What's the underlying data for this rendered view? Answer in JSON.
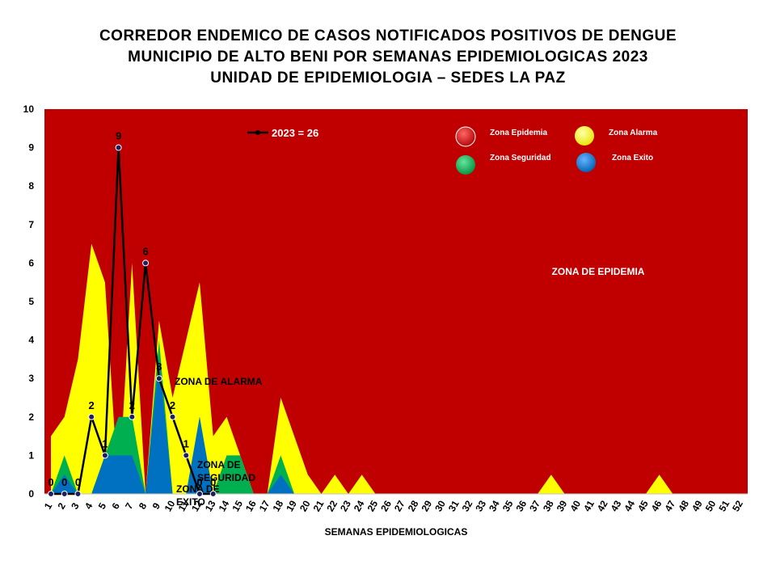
{
  "title": {
    "line1": "CORREDOR ENDEMICO DE CASOS NOTIFICADOS POSITIVOS DE DENGUE",
    "line2": "MUNICIPIO DE ALTO BENI  POR SEMANAS EPIDEMIOLOGICAS 2023",
    "line3": "UNIDAD DE EPIDEMIOLOGIA – SEDES LA PAZ"
  },
  "chart_data": {
    "type": "area",
    "xlabel": "SEMANAS EPIDEMIOLOGICAS",
    "ylabel": "",
    "ylim": [
      0,
      10
    ],
    "yticks": [
      0,
      1,
      2,
      3,
      4,
      5,
      6,
      7,
      8,
      9,
      10
    ],
    "x": [
      1,
      2,
      3,
      4,
      5,
      6,
      7,
      8,
      9,
      10,
      11,
      12,
      13,
      14,
      15,
      16,
      17,
      18,
      19,
      20,
      21,
      22,
      23,
      24,
      25,
      26,
      27,
      28,
      29,
      30,
      31,
      32,
      33,
      34,
      35,
      36,
      37,
      38,
      39,
      40,
      41,
      42,
      43,
      44,
      45,
      46,
      47,
      48,
      49,
      50,
      51,
      52
    ],
    "grid": false,
    "legend_position": "top-right",
    "series": [
      {
        "name": "Zona Epidemia",
        "color": "#C00000",
        "values": [
          10,
          10,
          10,
          10,
          10,
          10,
          10,
          10,
          10,
          10,
          10,
          10,
          10,
          10,
          10,
          10,
          10,
          10,
          10,
          10,
          10,
          10,
          10,
          10,
          10,
          10,
          10,
          10,
          10,
          10,
          10,
          10,
          10,
          10,
          10,
          10,
          10,
          10,
          10,
          10,
          10,
          10,
          10,
          10,
          10,
          10,
          10,
          10,
          10,
          10,
          10,
          10
        ]
      },
      {
        "name": "Zona Alarma",
        "color": "#FFFF00",
        "values": [
          1.5,
          2,
          3.5,
          6.5,
          5.5,
          0,
          6,
          0,
          4.5,
          2.5,
          4,
          5.5,
          1.5,
          2,
          1,
          0,
          0,
          2.5,
          1.5,
          0.5,
          0,
          0.5,
          0,
          0.5,
          0,
          0,
          0,
          0,
          0,
          0,
          0,
          0,
          0,
          0,
          0,
          0,
          0,
          0.5,
          0,
          0,
          0,
          0,
          0,
          0,
          0,
          0.5,
          0,
          0,
          0,
          0,
          0,
          0
        ]
      },
      {
        "name": "Zona Seguridad",
        "color": "#00B050",
        "values": [
          0,
          1,
          0,
          0,
          1,
          2,
          2,
          0,
          4,
          0,
          0,
          2,
          0,
          1,
          1,
          0,
          0,
          1,
          0,
          0,
          0,
          0,
          0,
          0,
          0,
          0,
          0,
          0,
          0,
          0,
          0,
          0,
          0,
          0,
          0,
          0,
          0,
          0,
          0,
          0,
          0,
          0,
          0,
          0,
          0,
          0,
          0,
          0,
          0,
          0,
          0,
          0
        ]
      },
      {
        "name": "Zona Exito",
        "color": "#0070C0",
        "values": [
          0,
          0.5,
          0,
          0,
          1,
          1,
          1,
          0,
          3.5,
          0,
          0,
          2,
          0,
          0,
          0,
          0,
          0,
          0.5,
          0,
          0,
          0,
          0,
          0,
          0,
          0,
          0,
          0,
          0,
          0,
          0,
          0,
          0,
          0,
          0,
          0,
          0,
          0,
          0,
          0,
          0,
          0,
          0,
          0,
          0,
          0,
          0,
          0,
          0,
          0,
          0,
          0,
          0
        ]
      }
    ],
    "line_series": {
      "name": "2023 = 26",
      "color": "#000000",
      "x": [
        1,
        2,
        3,
        4,
        5,
        6,
        7,
        8,
        9,
        10,
        11,
        12,
        13
      ],
      "values": [
        0,
        0,
        0,
        2,
        1,
        9,
        2,
        6,
        3,
        2,
        1,
        0,
        0
      ],
      "labels": [
        "0",
        "0",
        "0",
        "2",
        "1",
        "9",
        "2",
        "6",
        "3",
        "2",
        "1",
        "0",
        "0"
      ]
    },
    "annotations": [
      {
        "text": "ZONA DE EPIDEMIA"
      },
      {
        "text": "ZONA DE ALARMA"
      },
      {
        "text": "ZONA DE SEGURIDAD",
        "lines": [
          "ZONA DE",
          "SEGURIDAD"
        ]
      },
      {
        "text": "ZONA DE EXITO",
        "lines": [
          "ZONA DE",
          "EXITO"
        ]
      }
    ],
    "legend": [
      {
        "label": "Zona Epidemia",
        "color": "#C00000"
      },
      {
        "label": "Zona Alarma",
        "color": "#FFFF00"
      },
      {
        "label": "Zona Seguridad",
        "color": "#00B050"
      },
      {
        "label": "Zona Exito",
        "color": "#0070C0"
      }
    ]
  }
}
